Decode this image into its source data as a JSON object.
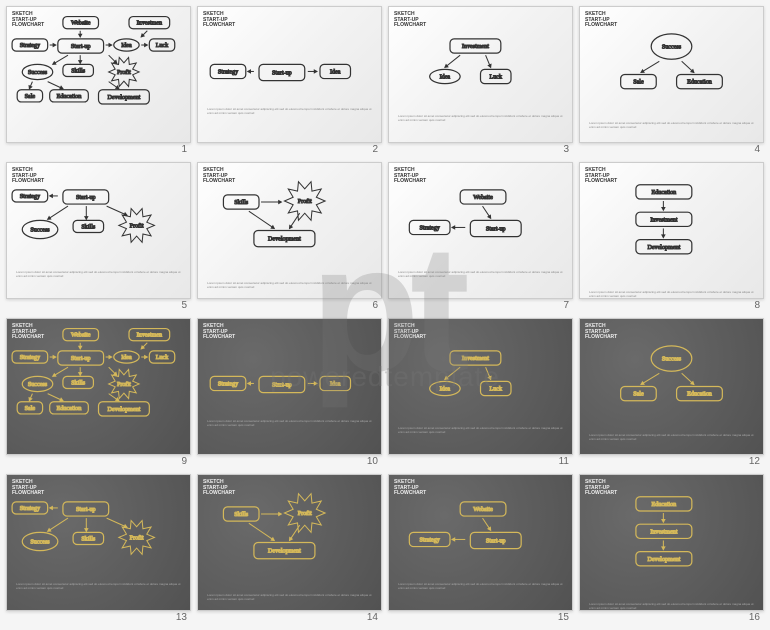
{
  "watermark": {
    "logo": "pt",
    "text": "poweredtemplate"
  },
  "slideTitle": "SKETCH\nSTART-UP\nFLOWCHART",
  "lorem": "Lorem ipsum dolor sit amet consectetur adipiscing elit sed do eiusmod tempor incididunt ut labore et dolore magna aliqua ut enim ad minim veniam quis nostrud",
  "labels": {
    "website": "Website",
    "investment": "Investment",
    "investmen": "Investmen",
    "strategy": "Strategy",
    "startup": "Start-up",
    "idea": "Idea",
    "luck": "Luck",
    "success": "Success",
    "skills": "Skills",
    "profit": "Profit",
    "sale": "Sale",
    "education": "Education",
    "development": "Development"
  },
  "colors": {
    "lightBg": "#ffffff",
    "darkBg": "#5e5e5e",
    "lightStroke": "#333333",
    "darkStroke": "#d4b85a"
  },
  "slides": [
    {
      "num": 1,
      "theme": "light",
      "layout": "full"
    },
    {
      "num": 2,
      "theme": "light",
      "layout": "strategy-startup-idea"
    },
    {
      "num": 3,
      "theme": "light",
      "layout": "investment-idea-luck"
    },
    {
      "num": 4,
      "theme": "light",
      "layout": "success-sale-education"
    },
    {
      "num": 5,
      "theme": "light",
      "layout": "startup-success-skills-profit"
    },
    {
      "num": 6,
      "theme": "light",
      "layout": "skills-profit-development"
    },
    {
      "num": 7,
      "theme": "light",
      "layout": "website-strategy-startup"
    },
    {
      "num": 8,
      "theme": "light",
      "layout": "edu-invest-dev"
    },
    {
      "num": 9,
      "theme": "dark",
      "layout": "full"
    },
    {
      "num": 10,
      "theme": "dark",
      "layout": "strategy-startup-idea"
    },
    {
      "num": 11,
      "theme": "dark",
      "layout": "investment-idea-luck"
    },
    {
      "num": 12,
      "theme": "dark",
      "layout": "success-sale-education"
    },
    {
      "num": 13,
      "theme": "dark",
      "layout": "startup-success-skills-profit"
    },
    {
      "num": 14,
      "theme": "dark",
      "layout": "skills-profit-development"
    },
    {
      "num": 15,
      "theme": "dark",
      "layout": "website-strategy-startup"
    },
    {
      "num": 16,
      "theme": "dark",
      "layout": "edu-invest-dev"
    }
  ]
}
